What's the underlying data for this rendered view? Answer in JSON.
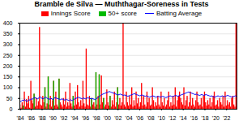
{
  "chart_data": {
    "type": "bar",
    "title": "Bramble de Silva — Muththagar-Soreness in Tests",
    "categories": [
      "'84",
      null,
      null,
      null,
      null,
      null,
      null,
      null,
      null,
      null,
      "'86",
      null,
      null,
      null,
      null,
      null,
      null,
      null,
      null,
      null,
      "'88",
      null,
      null,
      null,
      null,
      null,
      null,
      null,
      null,
      null,
      "'90",
      null,
      null,
      null,
      null,
      null,
      null,
      null,
      null,
      null,
      "'92",
      null,
      null,
      null,
      null,
      null,
      null,
      null,
      null,
      null,
      "'94",
      null,
      null,
      null,
      null,
      null,
      null,
      null,
      null,
      null,
      "'96",
      null,
      null,
      null,
      null,
      null,
      null,
      null,
      null,
      null,
      "'98",
      null,
      null,
      null,
      null,
      null,
      null,
      null,
      null,
      null,
      "'00",
      null,
      null,
      null,
      null,
      null,
      null,
      null,
      null,
      null,
      "'02",
      null,
      null,
      null,
      null,
      null,
      null,
      null,
      null,
      null,
      "'04",
      null,
      null,
      null,
      null,
      null,
      null,
      null,
      null,
      null,
      "'06",
      null,
      null,
      null,
      null,
      null,
      null,
      null,
      null,
      null,
      "'08",
      null,
      null,
      null,
      null,
      null,
      null,
      null,
      null,
      null,
      "'10",
      null,
      null,
      null,
      null,
      null,
      null,
      null,
      null,
      null,
      "'12",
      null,
      null,
      null,
      null,
      null,
      null,
      null,
      null,
      null,
      "'14",
      null,
      null,
      null,
      null,
      null,
      null,
      null,
      null,
      null,
      "'16",
      null,
      null,
      null,
      null,
      null,
      null,
      null,
      null,
      null,
      "'18",
      null,
      null,
      null,
      null,
      null,
      null,
      null,
      null,
      null,
      "'20",
      null,
      null,
      null,
      null,
      null,
      null,
      null,
      null,
      null,
      "'22",
      null,
      null,
      null,
      null,
      null,
      null,
      null,
      null,
      null
    ],
    "series": [
      {
        "name": "Innings Score",
        "color": "#ff0000",
        "type": "bar",
        "values": [
          20,
          5,
          30,
          15,
          80,
          10,
          45,
          25,
          60,
          5,
          130,
          40,
          25,
          70,
          10,
          50,
          15,
          35,
          380,
          20,
          15,
          60,
          30,
          100,
          10,
          25,
          150,
          20,
          60,
          10,
          40,
          130,
          15,
          80,
          20,
          10,
          140,
          30,
          20,
          10,
          50,
          20,
          80,
          10,
          30,
          15,
          120,
          25,
          10,
          60,
          15,
          80,
          20,
          110,
          30,
          10,
          40,
          15,
          130,
          25,
          10,
          280,
          20,
          15,
          60,
          10,
          50,
          20,
          30,
          10,
          170,
          20,
          60,
          160,
          20,
          155,
          30,
          50,
          10,
          20,
          90,
          30,
          15,
          60,
          10,
          40,
          20,
          80,
          10,
          30,
          100,
          20,
          50,
          15,
          30,
          400,
          20,
          10,
          80,
          30,
          15,
          60,
          20,
          100,
          10,
          40,
          15,
          80,
          25,
          50,
          10,
          30,
          120,
          15,
          60,
          20,
          10,
          80,
          30,
          50,
          15,
          20,
          100,
          40,
          10,
          30,
          15,
          60,
          20,
          10,
          80,
          30,
          15,
          50,
          10,
          20,
          40,
          80,
          10,
          30,
          15,
          60,
          20,
          100,
          10,
          40,
          60,
          80,
          50,
          30,
          20,
          100,
          15,
          40,
          60,
          10,
          30,
          80,
          15,
          50,
          20,
          10,
          40,
          80,
          30,
          15,
          20,
          50,
          10,
          60,
          80,
          30,
          15,
          40,
          20,
          50,
          10,
          30,
          60,
          80,
          15,
          20,
          40,
          10,
          50,
          30,
          20,
          60,
          10,
          80,
          15,
          40,
          20,
          30,
          10,
          50,
          60,
          20,
          10,
          400
        ]
      },
      {
        "name": "50+ score",
        "color": "#00bb00",
        "type": "bar",
        "values": [
          0,
          0,
          0,
          15,
          0,
          0,
          0,
          0,
          0,
          0,
          0,
          0,
          0,
          70,
          0,
          0,
          0,
          0,
          0,
          0,
          0,
          0,
          0,
          100,
          0,
          0,
          150,
          0,
          0,
          0,
          0,
          130,
          0,
          0,
          0,
          0,
          140,
          0,
          0,
          0,
          0,
          0,
          0,
          0,
          0,
          0,
          0,
          0,
          0,
          60,
          0,
          0,
          0,
          0,
          0,
          0,
          0,
          0,
          0,
          0,
          0,
          0,
          0,
          0,
          0,
          0,
          50,
          0,
          0,
          0,
          170,
          0,
          0,
          160,
          0,
          0,
          0,
          50,
          0,
          0,
          0,
          0,
          0,
          60,
          0,
          0,
          0,
          0,
          0,
          0,
          100,
          0,
          0,
          0,
          0,
          0,
          0,
          0,
          0,
          0,
          0,
          0,
          0,
          0,
          0,
          0,
          0,
          0,
          0,
          0,
          0,
          0,
          0,
          0,
          0,
          0,
          0,
          0,
          0,
          0,
          0,
          0,
          0,
          0,
          0,
          0,
          0,
          0,
          0,
          0,
          0,
          0,
          0,
          0,
          0,
          0,
          0,
          0,
          0,
          0,
          0,
          0,
          0,
          0,
          0,
          0,
          0,
          0,
          0,
          0,
          0,
          0,
          0,
          0,
          0,
          0,
          0,
          0,
          0,
          0,
          0,
          0,
          0,
          0,
          0,
          0,
          0,
          0,
          0,
          0,
          0,
          0,
          0,
          0,
          0,
          0,
          0,
          0,
          0,
          0,
          0,
          0,
          0,
          0,
          0,
          0,
          0,
          0,
          0,
          0,
          0,
          0,
          0,
          0,
          0,
          0,
          0,
          0,
          0,
          0
        ]
      },
      {
        "name": "Batting Average",
        "color": "#0000ff",
        "type": "line",
        "values": [
          35,
          38,
          42,
          40,
          45,
          38,
          36,
          40,
          44,
          42,
          48,
          46,
          50,
          55,
          52,
          50,
          48,
          52,
          58,
          54,
          50,
          48,
          52,
          56,
          54,
          50,
          48,
          46,
          50,
          48,
          44,
          50,
          54,
          52,
          50,
          48,
          46,
          44,
          48,
          46,
          44,
          42,
          46,
          44,
          42,
          40,
          44,
          42,
          40,
          44,
          48,
          50,
          52,
          56,
          54,
          52,
          50,
          48,
          52,
          50,
          48,
          50,
          54,
          52,
          50,
          48,
          50,
          48,
          46,
          44,
          50,
          52,
          56,
          60,
          64,
          68,
          70,
          72,
          74,
          76,
          78,
          80,
          82,
          80,
          78,
          76,
          74,
          72,
          70,
          68,
          66,
          68,
          70,
          68,
          66,
          64,
          66,
          64,
          62,
          60,
          62,
          64,
          66,
          68,
          70,
          72,
          70,
          68,
          66,
          64,
          62,
          64,
          66,
          64,
          62,
          60,
          62,
          60,
          58,
          56,
          58,
          60,
          62,
          60,
          58,
          56,
          58,
          60,
          58,
          56,
          58,
          60,
          58,
          56,
          54,
          56,
          58,
          60,
          62,
          60,
          58,
          60,
          62,
          64,
          62,
          60,
          62,
          64,
          66,
          68,
          70,
          72,
          74,
          76,
          78,
          80,
          78,
          76,
          74,
          72,
          70,
          68,
          70,
          68,
          66,
          64,
          66,
          68,
          66,
          64,
          66,
          68,
          66,
          64,
          62,
          60,
          62,
          60,
          58,
          56,
          58,
          60,
          62,
          60,
          58,
          60,
          62,
          60,
          58,
          60,
          62,
          64,
          62,
          60,
          58,
          56,
          58,
          60,
          62,
          60
        ]
      }
    ],
    "ylim": [
      0,
      400
    ],
    "yticks": [
      0,
      50,
      100,
      150,
      200,
      250,
      300,
      350,
      400
    ],
    "grid": true,
    "legend": "top"
  }
}
